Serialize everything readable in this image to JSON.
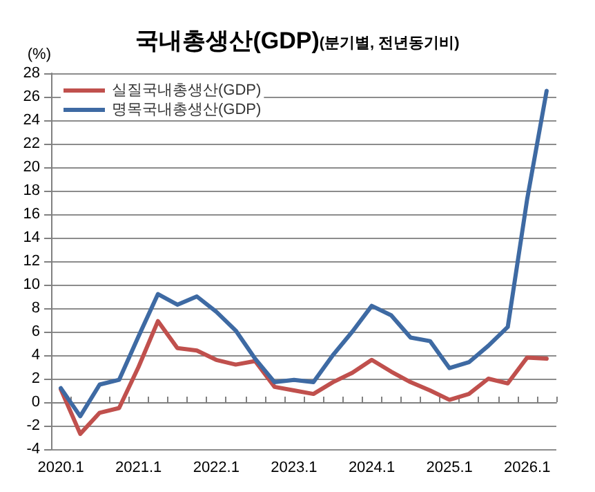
{
  "chart_data": {
    "type": "line",
    "title": "국내총생산(GDP)",
    "subtitle": "(분기별, 전년동기비)",
    "ylabel": "(%)",
    "categories": [
      "2020.1",
      null,
      null,
      null,
      "2021.1",
      null,
      null,
      null,
      "2022.1",
      null,
      null,
      null,
      "2023.1",
      null,
      null,
      null,
      "2024.1",
      null,
      null,
      null,
      "2025.1",
      null,
      null,
      null,
      "2026.1",
      null
    ],
    "series": [
      {
        "name": "실질국내총생산(GDP)",
        "color": "#c0504d",
        "values": [
          1.1,
          -2.7,
          -0.9,
          -0.5,
          3.0,
          6.9,
          4.6,
          4.4,
          3.6,
          3.2,
          3.5,
          1.3,
          1.0,
          0.7,
          1.7,
          2.5,
          3.6,
          2.6,
          1.7,
          1.0,
          0.2,
          0.7,
          2.0,
          1.6,
          3.8,
          3.7
        ]
      },
      {
        "name": "명목국내총생산(GDP)",
        "color": "#3e6aa3",
        "values": [
          1.2,
          -1.2,
          1.5,
          1.9,
          5.6,
          9.2,
          8.3,
          9.0,
          7.7,
          6.1,
          3.7,
          1.7,
          1.9,
          1.7,
          4.0,
          6.0,
          8.2,
          7.4,
          5.5,
          5.2,
          2.9,
          3.4,
          4.8,
          6.4,
          17.3,
          26.5
        ]
      }
    ],
    "ylim": [
      -4,
      28
    ],
    "yticks": [
      -4,
      -2,
      0,
      2,
      4,
      6,
      8,
      10,
      12,
      14,
      16,
      18,
      20,
      22,
      24,
      26,
      28
    ],
    "grid": "y",
    "legend": "top left",
    "marker": "none",
    "line_style": "solid"
  }
}
